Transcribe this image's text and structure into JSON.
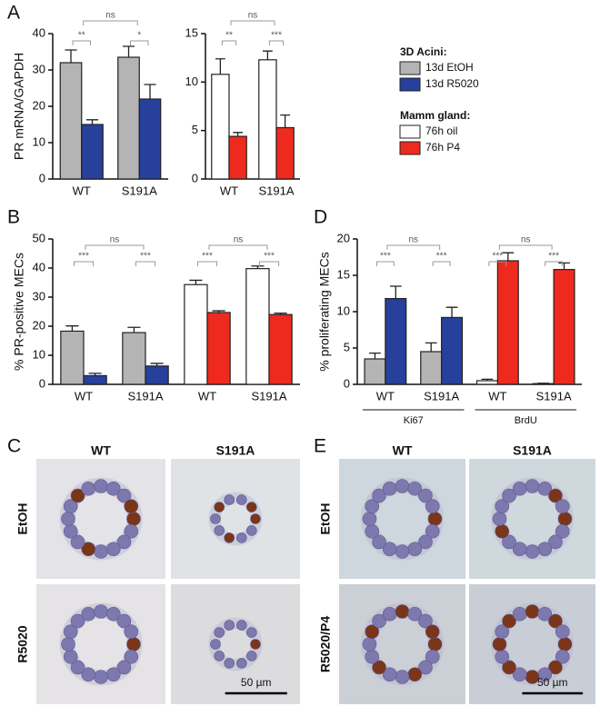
{
  "panel_letters": [
    "A",
    "B",
    "C",
    "D",
    "E"
  ],
  "legend_titles": [
    "3D Acini:",
    "Mamm gland:"
  ],
  "chart_data": [
    {
      "type": "bar",
      "ylabel": "PR mRNA/GAPDH",
      "categories": [
        "WT",
        "S191A"
      ],
      "series": [
        {
          "name": "13d EtOH",
          "color": "#b4b4b4",
          "values": [
            32,
            33.5
          ],
          "errors": [
            3.5,
            3
          ]
        },
        {
          "name": "13d R5020",
          "color": "#27409b",
          "values": [
            15,
            22
          ],
          "errors": [
            1.3,
            4
          ]
        }
      ],
      "ylim": [
        0,
        40
      ],
      "yticks": [
        0,
        10,
        20,
        30,
        40
      ],
      "annotations": [
        "**",
        "*",
        "ns"
      ]
    },
    {
      "type": "bar",
      "categories": [
        "WT",
        "S191A"
      ],
      "series": [
        {
          "name": "76h oil",
          "color": "#ffffff",
          "values": [
            10.8,
            12.3
          ],
          "errors": [
            1.6,
            0.9
          ]
        },
        {
          "name": "76h P4",
          "color": "#ee2a1e",
          "values": [
            4.4,
            5.3
          ],
          "errors": [
            0.4,
            1.3
          ]
        }
      ],
      "ylim": [
        0,
        15
      ],
      "yticks": [
        0,
        5,
        10,
        15
      ],
      "annotations": [
        "**",
        "***",
        "ns"
      ]
    },
    {
      "type": "bar",
      "ylabel": "% PR-positive MECs",
      "categories": [
        "WT",
        "S191A",
        "WT",
        "S191A"
      ],
      "series": [
        {
          "name": "13d EtOH",
          "color": "#b4b4b4",
          "values": [
            18.3,
            17.8,
            null,
            null
          ],
          "errors": [
            1.8,
            1.8,
            null,
            null
          ]
        },
        {
          "name": "13d R5020",
          "color": "#27409b",
          "values": [
            3,
            6.3,
            null,
            null
          ],
          "errors": [
            0.8,
            0.9,
            null,
            null
          ]
        },
        {
          "name": "76h oil",
          "color": "#ffffff",
          "values": [
            null,
            null,
            34.3,
            39.8
          ],
          "errors": [
            null,
            null,
            1.5,
            0.9
          ]
        },
        {
          "name": "76h P4",
          "color": "#ee2a1e",
          "values": [
            null,
            null,
            24.7,
            24
          ],
          "errors": [
            null,
            null,
            0.6,
            0.5
          ]
        }
      ],
      "ylim": [
        0,
        50
      ],
      "yticks": [
        0,
        10,
        20,
        30,
        40,
        50
      ],
      "annotations": [
        "***",
        "***",
        "ns",
        "***",
        "***",
        "ns"
      ]
    },
    {
      "type": "bar",
      "ylabel": "% proliferating MECs",
      "categories": [
        "WT",
        "S191A",
        "WT",
        "S191A"
      ],
      "category_groups": [
        "Ki67",
        "BrdU"
      ],
      "series": [
        {
          "name": "13d EtOH",
          "color": "#b4b4b4",
          "values": [
            3.5,
            4.5,
            null,
            null
          ],
          "errors": [
            0.8,
            1.2,
            null,
            null
          ]
        },
        {
          "name": "13d R5020",
          "color": "#27409b",
          "values": [
            11.8,
            9.2,
            null,
            null
          ],
          "errors": [
            1.7,
            1.4,
            null,
            null
          ]
        },
        {
          "name": "76h oil",
          "color": "#ffffff",
          "values": [
            null,
            null,
            0.5,
            0.1
          ],
          "errors": [
            null,
            null,
            0.2,
            0.05
          ]
        },
        {
          "name": "76h P4",
          "color": "#ee2a1e",
          "values": [
            null,
            null,
            17,
            15.8
          ],
          "errors": [
            null,
            null,
            1.1,
            0.9
          ]
        }
      ],
      "ylim": [
        0,
        20
      ],
      "yticks": [
        0,
        5,
        10,
        15,
        20
      ],
      "annotations": [
        "***",
        "***",
        "ns",
        "***",
        "***",
        "ns"
      ]
    }
  ],
  "micrographs": [
    {
      "columns": [
        "WT",
        "S191A"
      ],
      "rows": [
        "EtOH",
        "R5020"
      ],
      "scale_bar": "50 µm"
    },
    {
      "columns": [
        "WT",
        "S191A"
      ],
      "rows": [
        "EtOH",
        "R5020/P4"
      ],
      "scale_bar": "50 µm"
    }
  ]
}
